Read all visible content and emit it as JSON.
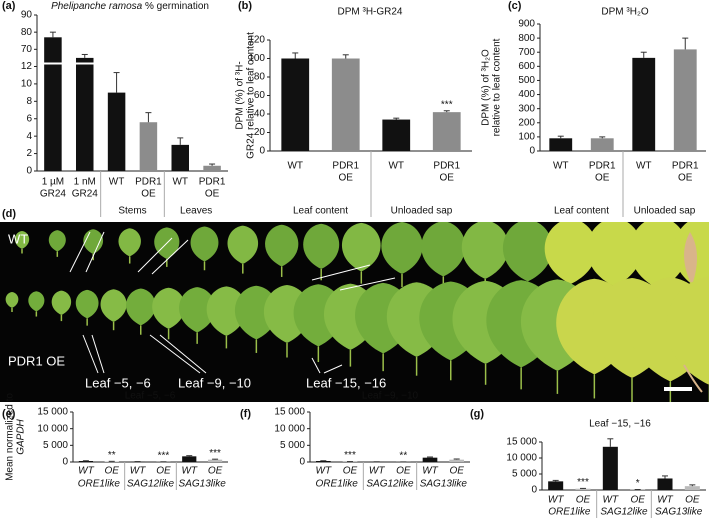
{
  "chart_data": [
    {
      "type": "bar",
      "panel": "(a)",
      "title_italic": "Phelipanche ramosa",
      "title": "% germination",
      "categories": [
        [
          "1 µM",
          "GR24"
        ],
        [
          "1 nM",
          "GR24"
        ],
        [
          "WT"
        ],
        [
          "PDR1",
          "OE"
        ],
        [
          "WT"
        ],
        [
          "PDR1",
          "OE"
        ]
      ],
      "groups": [
        null,
        null,
        "Stems",
        "Stems",
        "Leaves",
        "Leaves"
      ],
      "values": [
        77,
        65,
        9,
        5.6,
        3,
        0.6
      ],
      "errors": [
        3,
        2,
        2.3,
        1.1,
        0.8,
        0.2
      ],
      "colors": [
        "#111111",
        "#111111",
        "#111111",
        "#8c8c8c",
        "#111111",
        "#8c8c8c"
      ],
      "ylim": [
        0,
        90
      ],
      "ybreak": [
        12,
        60
      ],
      "yticks": [
        0,
        2,
        4,
        6,
        8,
        10,
        12,
        70,
        80,
        90
      ]
    },
    {
      "type": "bar",
      "panel": "(b)",
      "title": "DPM ³H-GR24",
      "ylabel": [
        "DPM (%) of ³H-",
        "GR24 relative to leaf content"
      ],
      "categories": [
        [
          "WT"
        ],
        [
          "PDR1",
          "OE"
        ],
        [
          "WT"
        ],
        [
          "PDR1",
          "OE"
        ]
      ],
      "groups": [
        "Leaf content",
        "Leaf content",
        "Unloaded sap",
        "Unloaded sap"
      ],
      "values": [
        100,
        100,
        34,
        42
      ],
      "errors": [
        6,
        4,
        1.5,
        1.5
      ],
      "annotations": [
        null,
        null,
        null,
        "***"
      ],
      "colors": [
        "#111111",
        "#8c8c8c",
        "#111111",
        "#8c8c8c"
      ],
      "ylim": [
        0,
        120
      ],
      "yticks": [
        0,
        20,
        40,
        60,
        80,
        100,
        120
      ]
    },
    {
      "type": "bar",
      "panel": "(c)",
      "title": "DPM ³H₂O",
      "ylabel": [
        "DPM (%) of ³H₂O",
        "relative to leaf content"
      ],
      "categories": [
        [
          "WT"
        ],
        [
          "PDR1",
          "OE"
        ],
        [
          "WT"
        ],
        [
          "PDR1",
          "OE"
        ]
      ],
      "groups": [
        "Leaf content",
        "Leaf content",
        "Unloaded sap",
        "Unloaded sap"
      ],
      "values": [
        90,
        90,
        660,
        720
      ],
      "errors": [
        15,
        10,
        40,
        80
      ],
      "colors": [
        "#111111",
        "#8c8c8c",
        "#111111",
        "#8c8c8c"
      ],
      "ylim": [
        0,
        900
      ],
      "yticks": [
        0,
        100,
        200,
        300,
        400,
        500,
        600,
        700,
        800,
        900
      ]
    },
    {
      "type": "bar",
      "panel": "(e)",
      "title": "Leaf −5, −6",
      "ylabel": [
        "Mean normalized to",
        "GAPDH"
      ],
      "categories": [
        [
          "WT"
        ],
        [
          "OE"
        ],
        [
          "WT"
        ],
        [
          "OE"
        ],
        [
          "WT"
        ],
        [
          "OE"
        ]
      ],
      "groups": [
        "ORE1like",
        "ORE1like",
        "SAG12like",
        "SAG12like",
        "SAG13like",
        "SAG13like"
      ],
      "values": [
        300,
        150,
        100,
        50,
        1700,
        700
      ],
      "errors": [
        80,
        50,
        30,
        20,
        200,
        150
      ],
      "annotations": [
        null,
        "**",
        null,
        "***",
        null,
        "***"
      ],
      "colors": [
        "#111111",
        "#bbbbbb",
        "#111111",
        "#bbbbbb",
        "#111111",
        "#bbbbbb"
      ],
      "ylim": [
        0,
        15000
      ],
      "yticks": [
        0,
        {
          "value": 5000,
          "label": "5 000"
        },
        {
          "value": 10000,
          "label": "10 000"
        },
        {
          "value": 15000,
          "label": "15 000"
        }
      ]
    },
    {
      "type": "bar",
      "panel": "(f)",
      "title": "Leaf −9, −10",
      "categories": [
        [
          "WT"
        ],
        [
          "OE"
        ],
        [
          "WT"
        ],
        [
          "OE"
        ],
        [
          "WT"
        ],
        [
          "OE"
        ]
      ],
      "groups": [
        "ORE1like",
        "ORE1like",
        "SAG12like",
        "SAG12like",
        "SAG13like",
        "SAG13like"
      ],
      "values": [
        300,
        100,
        50,
        30,
        1300,
        700
      ],
      "errors": [
        80,
        30,
        20,
        10,
        200,
        200
      ],
      "annotations": [
        null,
        "***",
        null,
        "**",
        null,
        null
      ],
      "colors": [
        "#111111",
        "#bbbbbb",
        "#111111",
        "#bbbbbb",
        "#111111",
        "#bbbbbb"
      ],
      "ylim": [
        0,
        15000
      ],
      "yticks": [
        0,
        {
          "value": 5000,
          "label": "5 000"
        },
        {
          "value": 10000,
          "label": "10 000"
        },
        {
          "value": 15000,
          "label": "15 000"
        }
      ]
    },
    {
      "type": "bar",
      "panel": "(g)",
      "title": "Leaf −15, −16",
      "categories": [
        [
          "WT"
        ],
        [
          "OE"
        ],
        [
          "WT"
        ],
        [
          "OE"
        ],
        [
          "WT"
        ],
        [
          "OE"
        ]
      ],
      "groups": [
        "ORE1like",
        "ORE1like",
        "SAG12like",
        "SAG12like",
        "SAG13like",
        "SAG13like"
      ],
      "values": [
        2700,
        400,
        13500,
        100,
        3600,
        1200
      ],
      "errors": [
        300,
        100,
        2500,
        50,
        800,
        400
      ],
      "annotations": [
        null,
        "***",
        null,
        "*",
        null,
        null
      ],
      "colors": [
        "#111111",
        "#bbbbbb",
        "#111111",
        "#bbbbbb",
        "#111111",
        "#bbbbbb"
      ],
      "ylim": [
        0,
        15000
      ],
      "yticks": [
        0,
        {
          "value": 5000,
          "label": "5 000"
        },
        {
          "value": 10000,
          "label": "10 000"
        },
        {
          "value": 15000,
          "label": "15 000"
        }
      ]
    }
  ],
  "photo": {
    "panel": "(d)",
    "row1_label": "WT",
    "row2_label": "PDR1 OE",
    "leaf_labels": [
      "Leaf −5, −6",
      "Leaf −9, −10",
      "Leaf −15, −16"
    ]
  }
}
